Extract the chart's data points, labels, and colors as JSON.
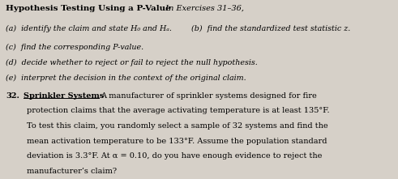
{
  "bg_color": "#d6d0c8",
  "title_bold": "Hypothesis Testing Using a P-Value",
  "title_normal": "  In Exercises 31–36,",
  "item_a": "(a)  identify the claim and state H₀ and Hₐ.",
  "item_b": "(b)  find the standardized test statistic z.",
  "item_c": "(c)  find the corresponding P-value.",
  "item_d": "(d)  decide whether to reject or fail to reject the null hypothesis.",
  "item_e": "(e)  interpret the decision in the context of the original claim.",
  "problem_number": "32.",
  "problem_title": "Sprinkler Systems",
  "problem_text1": "A manufacturer of sprinkler systems designed for fire",
  "problem_text2": "protection claims that the average activating temperature is at least 135°F.",
  "problem_text3": "To test this claim, you randomly select a sample of 32 systems and find the",
  "problem_text4": "mean activation temperature to be 133°F. Assume the population standard",
  "problem_text5": "deviation is 3.3°F. At α = 0.10, do you have enough evidence to reject the",
  "problem_text6": "manufacturer’s claim?"
}
